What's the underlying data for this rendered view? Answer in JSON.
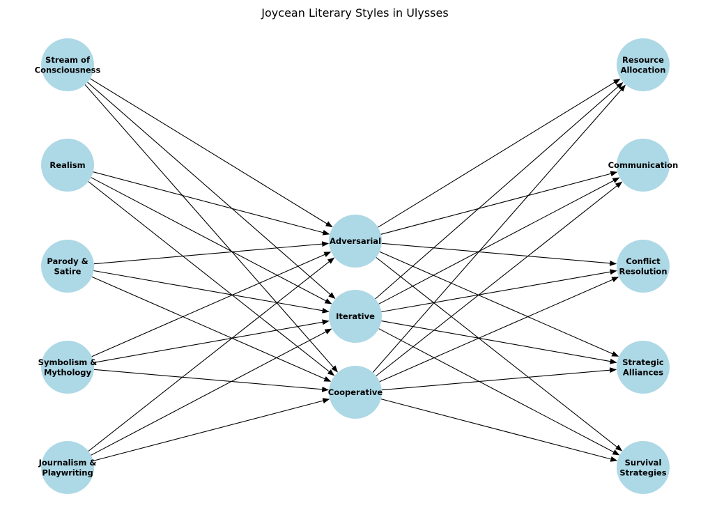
{
  "title": "Joycean Literary Styles in Ulysses",
  "colors": {
    "node_fill": "#add8e6",
    "edge": "#000000",
    "background": "#ffffff"
  },
  "nodes": {
    "left": [
      {
        "id": "stream",
        "label": [
          "Stream of",
          "Consciousness"
        ]
      },
      {
        "id": "realism",
        "label": [
          "Realism"
        ]
      },
      {
        "id": "parody",
        "label": [
          "Parody &",
          "Satire"
        ]
      },
      {
        "id": "symbolism",
        "label": [
          "Symbolism &",
          "Mythology"
        ]
      },
      {
        "id": "journalism",
        "label": [
          "Journalism &",
          "Playwriting"
        ]
      }
    ],
    "middle": [
      {
        "id": "adversarial",
        "label": [
          "Adversarial"
        ]
      },
      {
        "id": "iterative",
        "label": [
          "Iterative"
        ]
      },
      {
        "id": "cooperative",
        "label": [
          "Cooperative"
        ]
      }
    ],
    "right": [
      {
        "id": "resource",
        "label": [
          "Resource",
          "Allocation"
        ]
      },
      {
        "id": "communication",
        "label": [
          "Communication"
        ]
      },
      {
        "id": "conflict",
        "label": [
          "Conflict",
          "Resolution"
        ]
      },
      {
        "id": "alliances",
        "label": [
          "Strategic",
          "Alliances"
        ]
      },
      {
        "id": "survival",
        "label": [
          "Survival",
          "Strategies"
        ]
      }
    ]
  },
  "edges": [
    [
      "stream",
      "adversarial"
    ],
    [
      "stream",
      "iterative"
    ],
    [
      "stream",
      "cooperative"
    ],
    [
      "realism",
      "adversarial"
    ],
    [
      "realism",
      "iterative"
    ],
    [
      "realism",
      "cooperative"
    ],
    [
      "parody",
      "adversarial"
    ],
    [
      "parody",
      "iterative"
    ],
    [
      "parody",
      "cooperative"
    ],
    [
      "symbolism",
      "adversarial"
    ],
    [
      "symbolism",
      "iterative"
    ],
    [
      "symbolism",
      "cooperative"
    ],
    [
      "journalism",
      "adversarial"
    ],
    [
      "journalism",
      "iterative"
    ],
    [
      "journalism",
      "cooperative"
    ],
    [
      "adversarial",
      "resource"
    ],
    [
      "adversarial",
      "communication"
    ],
    [
      "adversarial",
      "conflict"
    ],
    [
      "adversarial",
      "alliances"
    ],
    [
      "adversarial",
      "survival"
    ],
    [
      "iterative",
      "resource"
    ],
    [
      "iterative",
      "communication"
    ],
    [
      "iterative",
      "conflict"
    ],
    [
      "iterative",
      "alliances"
    ],
    [
      "iterative",
      "survival"
    ],
    [
      "cooperative",
      "resource"
    ],
    [
      "cooperative",
      "communication"
    ],
    [
      "cooperative",
      "conflict"
    ],
    [
      "cooperative",
      "alliances"
    ],
    [
      "cooperative",
      "survival"
    ]
  ]
}
